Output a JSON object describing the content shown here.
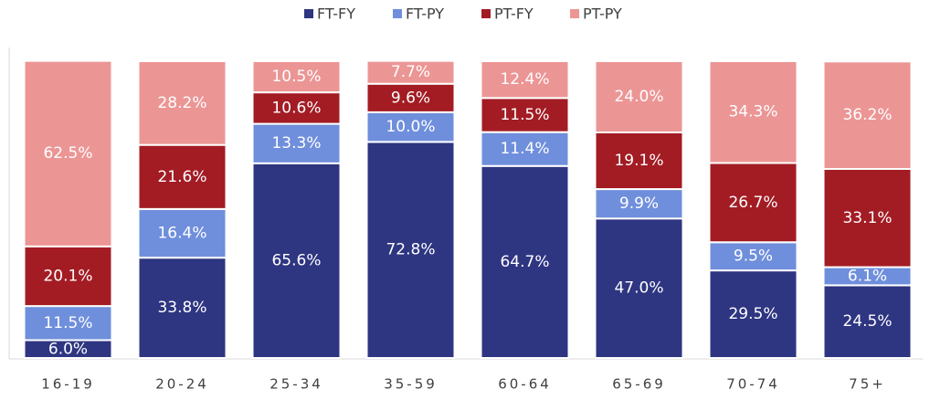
{
  "chart_data": {
    "type": "bar",
    "stacked": true,
    "categories": [
      "16-19",
      "20-24",
      "25-34",
      "35-59",
      "60-64",
      "65-69",
      "70-74",
      "75+"
    ],
    "series": [
      {
        "name": "FT-FY",
        "color": "#2e3581",
        "values": [
          6.0,
          33.8,
          65.6,
          72.8,
          64.7,
          47.0,
          29.5,
          24.5
        ],
        "value_labels": [
          "6.0%",
          "33.8%",
          "65.6%",
          "72.8%",
          "64.7%",
          "47.0%",
          "29.5%",
          "24.5%"
        ]
      },
      {
        "name": "FT-PY",
        "color": "#6f8fdc",
        "values": [
          11.5,
          16.4,
          13.3,
          10.0,
          11.4,
          9.9,
          9.5,
          6.1
        ],
        "value_labels": [
          "11.5%",
          "16.4%",
          "13.3%",
          "10.0%",
          "11.4%",
          "9.9%",
          "9.5%",
          "6.1%"
        ]
      },
      {
        "name": "PT-FY",
        "color": "#a31c24",
        "values": [
          20.1,
          21.6,
          10.6,
          9.6,
          11.5,
          19.1,
          26.7,
          33.1
        ],
        "value_labels": [
          "20.1%",
          "21.6%",
          "10.6%",
          "9.6%",
          "11.5%",
          "19.1%",
          "26.7%",
          "33.1%"
        ]
      },
      {
        "name": "PT-PY",
        "color": "#ec9595",
        "values": [
          62.5,
          28.2,
          10.5,
          7.7,
          12.4,
          24.0,
          34.3,
          36.2
        ],
        "value_labels": [
          "62.5%",
          "28.2%",
          "10.5%",
          "7.7%",
          "12.4%",
          "24.0%",
          "34.3%",
          "36.2%"
        ]
      }
    ],
    "ylim": [
      0,
      100
    ],
    "legend": "top"
  }
}
